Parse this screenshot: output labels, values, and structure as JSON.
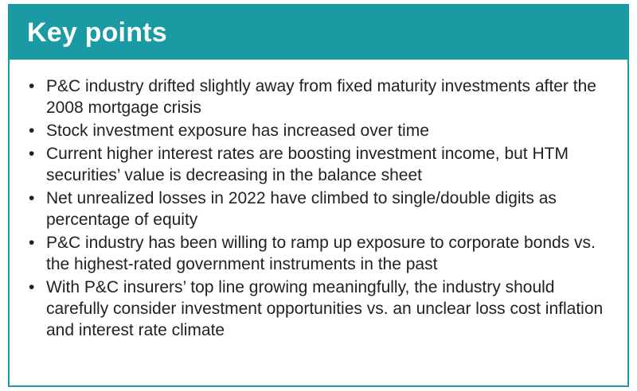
{
  "header": {
    "title": "Key points"
  },
  "colors": {
    "accent": "#1a9aa3"
  },
  "key_points": [
    "P&C industry drifted slightly away from fixed maturity investments after the 2008 mortgage crisis",
    "Stock investment exposure has increased over time",
    "Current higher interest rates are boosting investment income, but HTM securities’ value is decreasing in the balance sheet",
    "Net unrealized losses in 2022 have climbed to single/double digits as percentage of equity",
    "P&C industry has been willing to ramp up exposure to corporate bonds vs. the highest-rated government instruments in the past",
    "With P&C insurers’ top line growing meaningfully, the industry should carefully consider investment opportunities vs. an unclear loss cost inflation and interest rate climate"
  ]
}
